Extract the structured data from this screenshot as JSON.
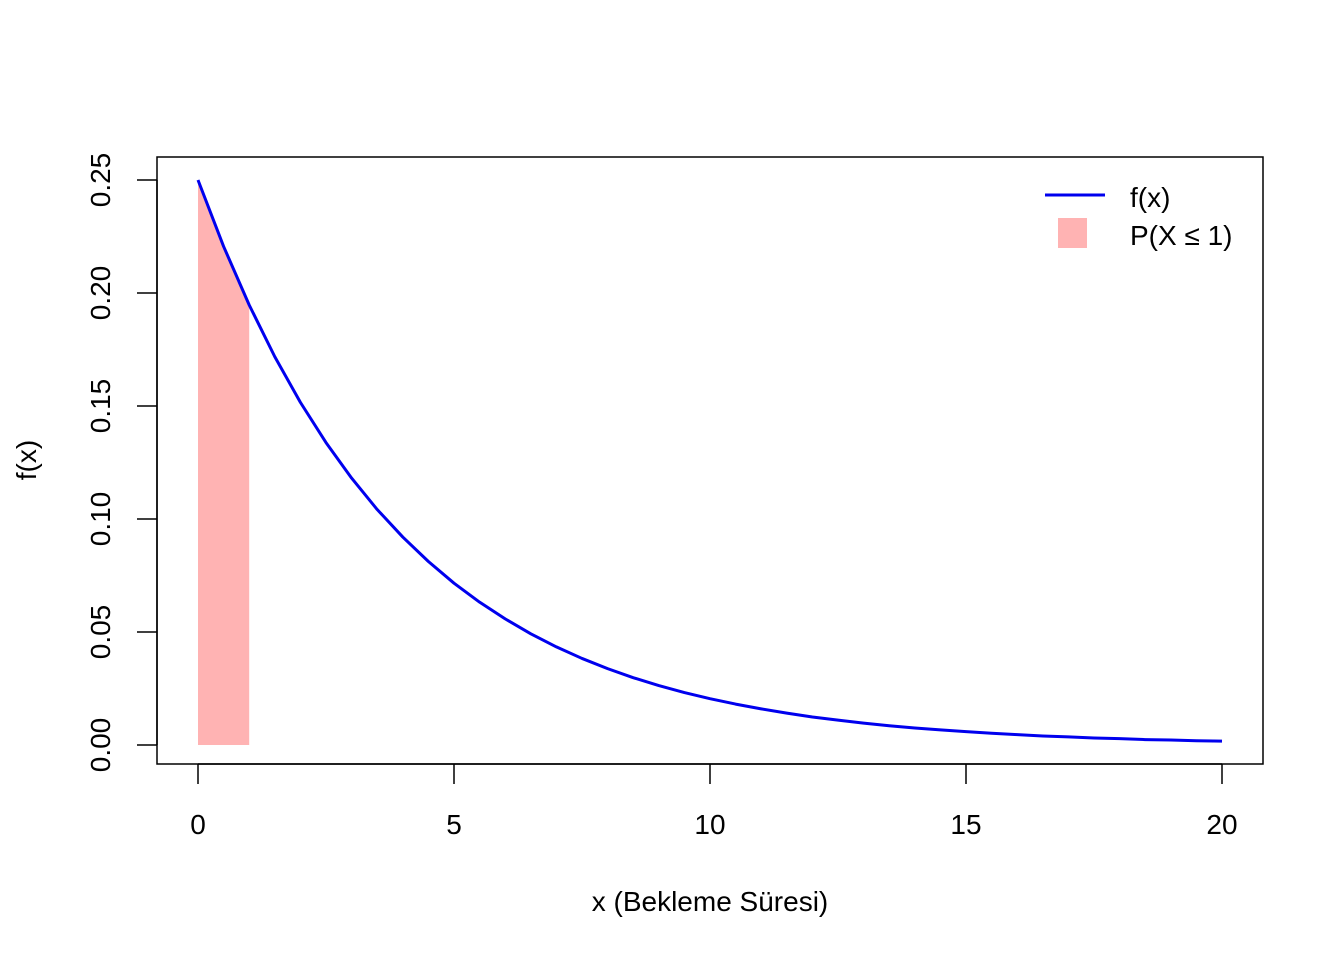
{
  "chart_data": {
    "type": "line",
    "title": "",
    "xlabel": "x (Bekleme Süresi)",
    "ylabel": "f(x)",
    "xlim": [
      0,
      20
    ],
    "ylim": [
      0,
      0.25
    ],
    "grid": false,
    "legend_position": "top-right",
    "x_ticks": [
      0,
      5,
      10,
      15,
      20
    ],
    "x_tick_labels": [
      "0",
      "5",
      "10",
      "15",
      "20"
    ],
    "y_ticks": [
      0,
      0.05,
      0.1,
      0.15,
      0.2,
      0.25
    ],
    "y_tick_labels": [
      "0.00",
      "0.05",
      "0.10",
      "0.15",
      "0.20",
      "0.25"
    ],
    "series": [
      {
        "name": "f(x)",
        "kind": "line",
        "color": "#0000ee",
        "x": [
          0,
          0.5,
          1,
          1.5,
          2,
          2.5,
          3,
          3.5,
          4,
          4.5,
          5,
          5.5,
          6,
          6.5,
          7,
          7.5,
          8,
          8.5,
          9,
          9.5,
          10,
          10.5,
          11,
          11.5,
          12,
          12.5,
          13,
          13.5,
          14,
          14.5,
          15,
          15.5,
          16,
          16.5,
          17,
          17.5,
          18,
          18.5,
          19,
          19.5,
          20
        ],
        "y": [
          0.25,
          0.2206,
          0.1947,
          0.1718,
          0.1516,
          0.1338,
          0.1181,
          0.1042,
          0.092,
          0.0812,
          0.0716,
          0.0632,
          0.0558,
          0.0492,
          0.0434,
          0.0383,
          0.0338,
          0.0298,
          0.0263,
          0.0232,
          0.0205,
          0.0181,
          0.016,
          0.0141,
          0.0124,
          0.011,
          0.0097,
          0.0085,
          0.0075,
          0.0067,
          0.0059,
          0.0052,
          0.0046,
          0.004,
          0.0036,
          0.0031,
          0.0028,
          0.0024,
          0.0022,
          0.0019,
          0.0017
        ]
      },
      {
        "name": "P(X ≤ 1)",
        "kind": "area",
        "color": "#ffb3b3",
        "x_from": 0,
        "x_to": 1
      }
    ]
  }
}
